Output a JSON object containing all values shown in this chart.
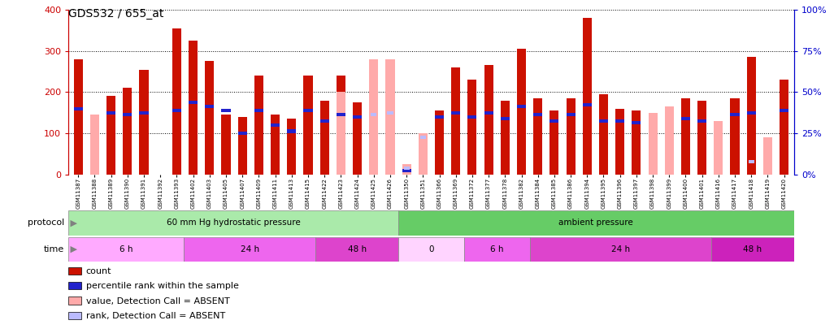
{
  "title": "GDS532 / 655_at",
  "samples": [
    "GSM11387",
    "GSM11388",
    "GSM11389",
    "GSM11390",
    "GSM11391",
    "GSM11392",
    "GSM11393",
    "GSM11402",
    "GSM11403",
    "GSM11405",
    "GSM11407",
    "GSM11409",
    "GSM11411",
    "GSM11413",
    "GSM11415",
    "GSM11422",
    "GSM11423",
    "GSM11424",
    "GSM11425",
    "GSM11426",
    "GSM11350",
    "GSM11351",
    "GSM11366",
    "GSM11369",
    "GSM11372",
    "GSM11377",
    "GSM11378",
    "GSM11382",
    "GSM11384",
    "GSM11385",
    "GSM11386",
    "GSM11394",
    "GSM11395",
    "GSM11396",
    "GSM11397",
    "GSM11398",
    "GSM11399",
    "GSM11400",
    "GSM11401",
    "GSM11416",
    "GSM11417",
    "GSM11418",
    "GSM11419",
    "GSM11420"
  ],
  "count_values": [
    280,
    0,
    190,
    210,
    255,
    0,
    355,
    325,
    275,
    145,
    140,
    240,
    145,
    135,
    240,
    180,
    240,
    175,
    0,
    0,
    5,
    5,
    155,
    260,
    230,
    265,
    180,
    305,
    185,
    155,
    185,
    380,
    195,
    160,
    155,
    0,
    0,
    185,
    180,
    0,
    185,
    285,
    0,
    230
  ],
  "rank_values": [
    160,
    0,
    150,
    145,
    150,
    0,
    155,
    175,
    165,
    155,
    100,
    155,
    120,
    105,
    155,
    130,
    145,
    140,
    0,
    0,
    10,
    0,
    140,
    150,
    140,
    150,
    135,
    165,
    145,
    130,
    145,
    170,
    130,
    130,
    125,
    0,
    0,
    135,
    130,
    0,
    145,
    150,
    0,
    155
  ],
  "absent_value_values": [
    0,
    145,
    0,
    0,
    0,
    0,
    0,
    0,
    0,
    0,
    0,
    0,
    0,
    0,
    0,
    0,
    200,
    0,
    280,
    280,
    25,
    100,
    0,
    0,
    0,
    0,
    0,
    0,
    0,
    0,
    0,
    0,
    0,
    0,
    0,
    150,
    165,
    0,
    0,
    130,
    0,
    0,
    90,
    0
  ],
  "absent_rank_values": [
    0,
    0,
    0,
    0,
    0,
    0,
    0,
    0,
    0,
    0,
    0,
    0,
    0,
    0,
    0,
    0,
    0,
    0,
    145,
    150,
    15,
    90,
    0,
    0,
    0,
    0,
    0,
    0,
    0,
    0,
    0,
    0,
    0,
    0,
    0,
    0,
    0,
    0,
    0,
    0,
    0,
    30,
    0,
    0
  ],
  "protocol_groups": [
    {
      "label": "60 mm Hg hydrostatic pressure",
      "start": 0,
      "end": 20,
      "color": "#aaeaaa"
    },
    {
      "label": "ambient pressure",
      "start": 20,
      "end": 44,
      "color": "#66cc66"
    }
  ],
  "time_groups": [
    {
      "label": "6 h",
      "start": 0,
      "end": 7,
      "color": "#ffaaff"
    },
    {
      "label": "24 h",
      "start": 7,
      "end": 15,
      "color": "#ee66ee"
    },
    {
      "label": "48 h",
      "start": 15,
      "end": 20,
      "color": "#dd44cc"
    },
    {
      "label": "0",
      "start": 20,
      "end": 24,
      "color": "#ffd4ff"
    },
    {
      "label": "6 h",
      "start": 24,
      "end": 28,
      "color": "#ee66ee"
    },
    {
      "label": "24 h",
      "start": 28,
      "end": 39,
      "color": "#dd44cc"
    },
    {
      "label": "48 h",
      "start": 39,
      "end": 44,
      "color": "#cc22bb"
    }
  ],
  "left_ylim": [
    0,
    400
  ],
  "right_ylim": [
    0,
    100
  ],
  "left_yticks": [
    0,
    100,
    200,
    300,
    400
  ],
  "right_yticks": [
    0,
    25,
    50,
    75,
    100
  ],
  "right_yticklabels": [
    "0%",
    "25%",
    "50%",
    "75%",
    "100%"
  ],
  "count_color": "#cc1100",
  "rank_color": "#2222cc",
  "absent_value_color": "#ffaaaa",
  "absent_rank_color": "#bbbbff",
  "left_ycolor": "#cc0000",
  "right_ycolor": "#0000cc",
  "legend_items": [
    [
      "#cc1100",
      "count"
    ],
    [
      "#2222cc",
      "percentile rank within the sample"
    ],
    [
      "#ffaaaa",
      "value, Detection Call = ABSENT"
    ],
    [
      "#bbbbff",
      "rank, Detection Call = ABSENT"
    ]
  ]
}
